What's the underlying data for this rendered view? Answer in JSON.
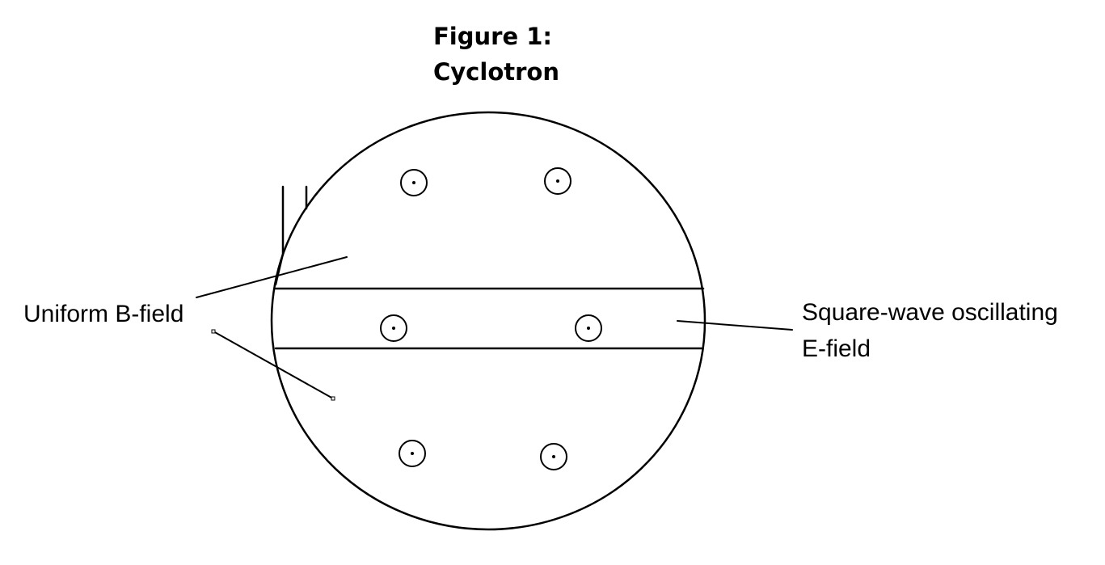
{
  "figure": {
    "title_line1": "Figure 1:",
    "title_line2": "Cyclotron"
  },
  "labels": {
    "b_field": "Uniform B-field",
    "e_field_line1": "Square-wave oscillating",
    "e_field_line2": "E-field"
  },
  "diagram": {
    "out_of_page_b_markers": 6,
    "stroke_color": "#000000",
    "background_color": "#ffffff"
  }
}
